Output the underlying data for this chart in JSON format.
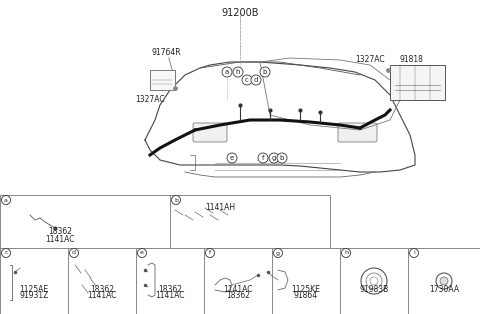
{
  "title": "91200B",
  "bg_color": "#ffffff",
  "line_color": "#000000",
  "light_line_color": "#aaaaaa",
  "component_labels": {
    "main_top": "91200B",
    "left_bracket": "91764R",
    "left_clamp": "1327AC",
    "right_clamp": "1327AC",
    "right_box": "91818",
    "circle_a": "a",
    "circle_b_top": "b",
    "circle_c": "c",
    "circle_d": "d",
    "circle_e": "e",
    "circle_f": "f",
    "circle_g": "g",
    "circle_h_top": "h",
    "circle_b_bot": "b",
    "circle_g_bot": "g",
    "circle_f_bot": "f"
  },
  "parts_grid_row1": [
    {
      "id": "a",
      "parts": [
        "18362",
        "1141AC"
      ]
    },
    {
      "id": "b",
      "parts": [
        "1141AH"
      ]
    }
  ],
  "parts_grid_row2": [
    {
      "id": "c",
      "parts": [
        "1125AE",
        "91931Z"
      ]
    },
    {
      "id": "d",
      "parts": [
        "18362",
        "1141AC"
      ]
    },
    {
      "id": "e",
      "parts": [
        "18362",
        "1141AC"
      ]
    },
    {
      "id": "f",
      "parts": [
        "1141AC",
        "18362"
      ]
    },
    {
      "id": "g",
      "parts": [
        "1125KE",
        "91864"
      ]
    },
    {
      "id": "h",
      "label": "91983B"
    },
    {
      "id": "i",
      "label": "1730AA"
    }
  ],
  "grid_border_color": "#888888",
  "text_color": "#222222",
  "small_font": 5.5,
  "medium_font": 6.5,
  "large_font": 8.5
}
